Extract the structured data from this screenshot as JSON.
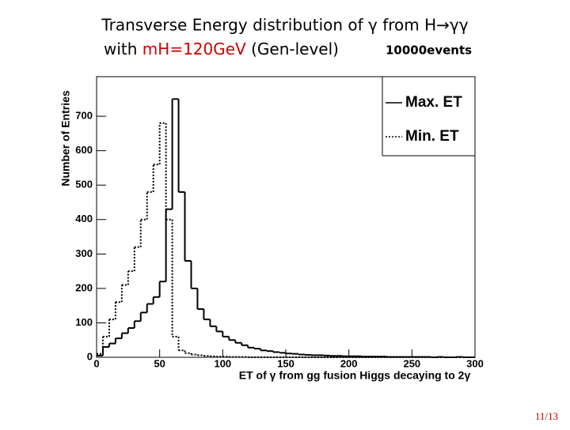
{
  "slide": {
    "title_line1": "Transverse Energy distribution of γ from H→γγ",
    "title_line2_prefix": "with",
    "title_highlight": "mH=120GeV",
    "title_line2_suffix": "(Gen-level)",
    "note": "10000events",
    "page_number": "11/13"
  },
  "chart_data": {
    "type": "histogram",
    "x_label": "ET of γ from gg fusion Higgs decaying to 2γ",
    "y_label": "Number of Entries",
    "bins": [
      0,
      5,
      10,
      15,
      20,
      25,
      30,
      35,
      40,
      45,
      50,
      55,
      60,
      65,
      70,
      75,
      80,
      85,
      90,
      95,
      100,
      105,
      110,
      115,
      120,
      125,
      130,
      135,
      140,
      145,
      150,
      155,
      160,
      165,
      170,
      175,
      180,
      185,
      190,
      195,
      200,
      205,
      210,
      215,
      220,
      225,
      230,
      235,
      240,
      245,
      250,
      255,
      260,
      265,
      270,
      275,
      280,
      285,
      290,
      295,
      300
    ],
    "series": [
      {
        "name": "Max. ET",
        "color": "#000000",
        "line_style": "solid",
        "values": [
          5,
          30,
          40,
          55,
          70,
          85,
          105,
          130,
          155,
          175,
          220,
          430,
          750,
          480,
          280,
          200,
          140,
          110,
          90,
          75,
          60,
          50,
          42,
          35,
          28,
          25,
          20,
          18,
          15,
          13,
          11,
          10,
          8,
          7,
          6,
          6,
          5,
          4,
          4,
          3,
          3,
          3,
          2,
          2,
          2,
          2,
          1,
          1,
          1,
          1,
          1,
          1,
          1,
          0,
          1,
          0,
          0,
          1,
          0,
          0
        ]
      },
      {
        "name": "Min. ET",
        "color": "#000000",
        "line_style": "dotted",
        "values": [
          10,
          60,
          110,
          160,
          210,
          250,
          320,
          400,
          480,
          560,
          680,
          400,
          60,
          20,
          12,
          8,
          6,
          4,
          3,
          2,
          2,
          1,
          1,
          1,
          0,
          0,
          0,
          0,
          0,
          0,
          0,
          0,
          0,
          0,
          0,
          0,
          0,
          0,
          0,
          0,
          0,
          0,
          0,
          0,
          0,
          0,
          0,
          0,
          0,
          0,
          0,
          0,
          0,
          0,
          0,
          0,
          0,
          0,
          0,
          0
        ]
      }
    ],
    "xlim": [
      0,
      300
    ],
    "xticks": [
      0,
      50,
      100,
      150,
      200,
      250,
      300
    ],
    "ylim": [
      0,
      815
    ],
    "yticks": [
      0,
      100,
      200,
      300,
      400,
      500,
      600,
      700
    ],
    "legend": "top-right"
  }
}
